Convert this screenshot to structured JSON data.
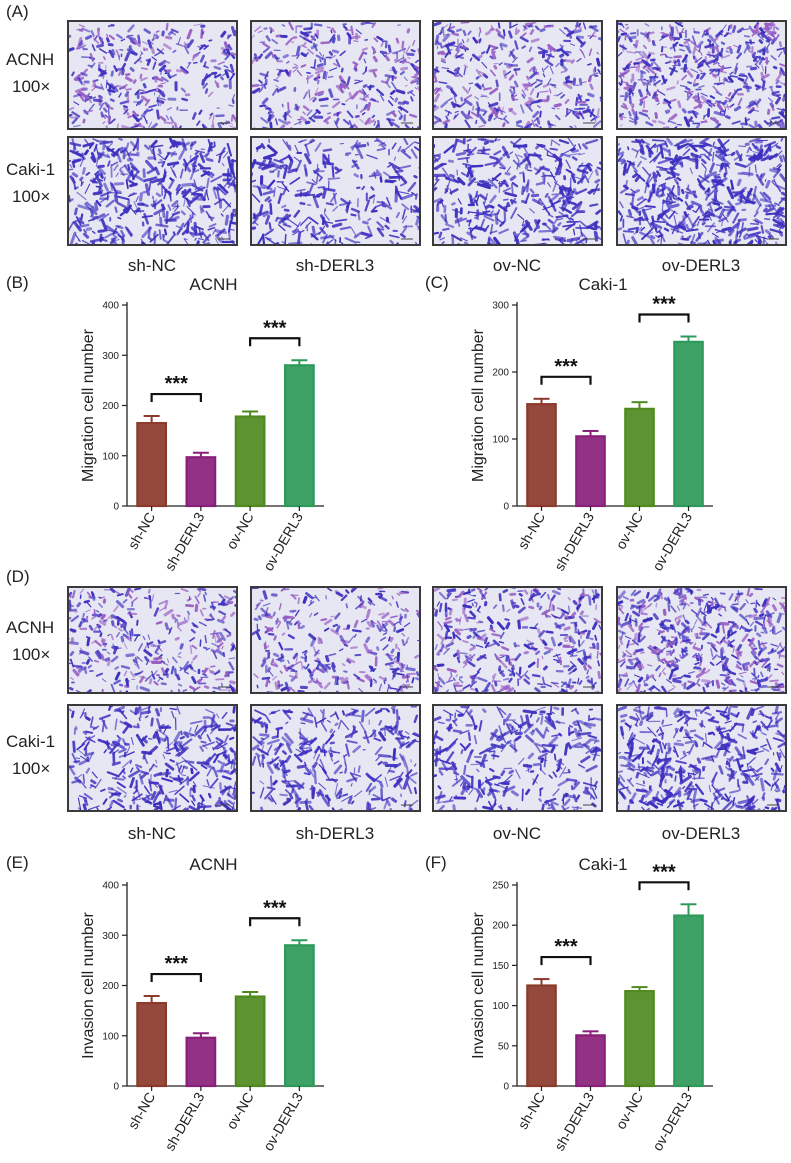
{
  "panels": [
    {
      "id": "A",
      "label": "(A)",
      "rows": [
        {
          "label_line1": "ACNH",
          "label_line2": "100×",
          "density": [
            0.55,
            0.52,
            0.6,
            0.9
          ]
        },
        {
          "label_line1": "Caki-1",
          "label_line2": "100×",
          "density": [
            0.75,
            0.4,
            0.6,
            0.85
          ]
        }
      ],
      "groups": [
        "sh-NC",
        "sh-DERL3",
        "ov-NC",
        "ov-DERL3"
      ]
    },
    {
      "id": "D",
      "label": "(D)",
      "rows": [
        {
          "label_line1": "ACNH",
          "label_line2": "100×",
          "density": [
            0.55,
            0.45,
            0.6,
            0.9
          ]
        },
        {
          "label_line1": "Caki-1",
          "label_line2": "100×",
          "density": [
            0.55,
            0.4,
            0.45,
            0.65
          ]
        }
      ],
      "groups": [
        "sh-NC",
        "sh-DERL3",
        "ov-NC",
        "ov-DERL3"
      ]
    }
  ],
  "colors": {
    "cells": "#3d2fc0",
    "cells_pink": "#9a5fc4",
    "bg_cell": "#e6e7f2",
    "sh_nc": "#8b3a2b",
    "sh_derl3": "#8a1f7a",
    "ov_nc": "#4f8a1e",
    "ov_derl3": "#2e9a5a",
    "axis": "#222222"
  },
  "chart_data": [
    {
      "id": "B",
      "label": "(B)",
      "type": "bar",
      "title": "ACNH",
      "ylabel": "Migration cell number",
      "categories": [
        "sh-NC",
        "sh-DERL3",
        "ov-NC",
        "ov-DERL3"
      ],
      "values": [
        165,
        97,
        178,
        280
      ],
      "errors": [
        14,
        9,
        10,
        10
      ],
      "ylim": [
        0,
        400
      ],
      "yticks": [
        0,
        100,
        200,
        300,
        400
      ],
      "significance": [
        {
          "from": 0,
          "to": 1,
          "text": "***"
        },
        {
          "from": 2,
          "to": 3,
          "text": "***"
        }
      ]
    },
    {
      "id": "C",
      "label": "(C)",
      "type": "bar",
      "title": "Caki-1",
      "ylabel": "Migration cell number",
      "categories": [
        "sh-NC",
        "sh-DERL3",
        "ov-NC",
        "ov-DERL3"
      ],
      "values": [
        152,
        104,
        145,
        245
      ],
      "errors": [
        8,
        8,
        10,
        8
      ],
      "ylim": [
        0,
        300
      ],
      "yticks": [
        0,
        100,
        200,
        300
      ],
      "significance": [
        {
          "from": 0,
          "to": 1,
          "text": "***"
        },
        {
          "from": 2,
          "to": 3,
          "text": "***"
        }
      ]
    },
    {
      "id": "E",
      "label": "(E)",
      "type": "bar",
      "title": "ACNH",
      "ylabel": "Invasion cell number",
      "categories": [
        "sh-NC",
        "sh-DERL3",
        "ov-NC",
        "ov-DERL3"
      ],
      "values": [
        165,
        96,
        178,
        280
      ],
      "errors": [
        14,
        9,
        9,
        10
      ],
      "ylim": [
        0,
        400
      ],
      "yticks": [
        0,
        100,
        200,
        300,
        400
      ],
      "significance": [
        {
          "from": 0,
          "to": 1,
          "text": "***"
        },
        {
          "from": 2,
          "to": 3,
          "text": "***"
        }
      ]
    },
    {
      "id": "F",
      "label": "(F)",
      "type": "bar",
      "title": "Caki-1",
      "ylabel": "Invasion cell number",
      "categories": [
        "sh-NC",
        "sh-DERL3",
        "ov-NC",
        "ov-DERL3"
      ],
      "values": [
        125,
        63,
        118,
        212
      ],
      "errors": [
        8,
        5,
        5,
        14
      ],
      "ylim": [
        0,
        250
      ],
      "yticks": [
        0,
        50,
        100,
        150,
        200,
        250
      ],
      "significance": [
        {
          "from": 0,
          "to": 1,
          "text": "***"
        },
        {
          "from": 2,
          "to": 3,
          "text": "***"
        }
      ]
    }
  ]
}
